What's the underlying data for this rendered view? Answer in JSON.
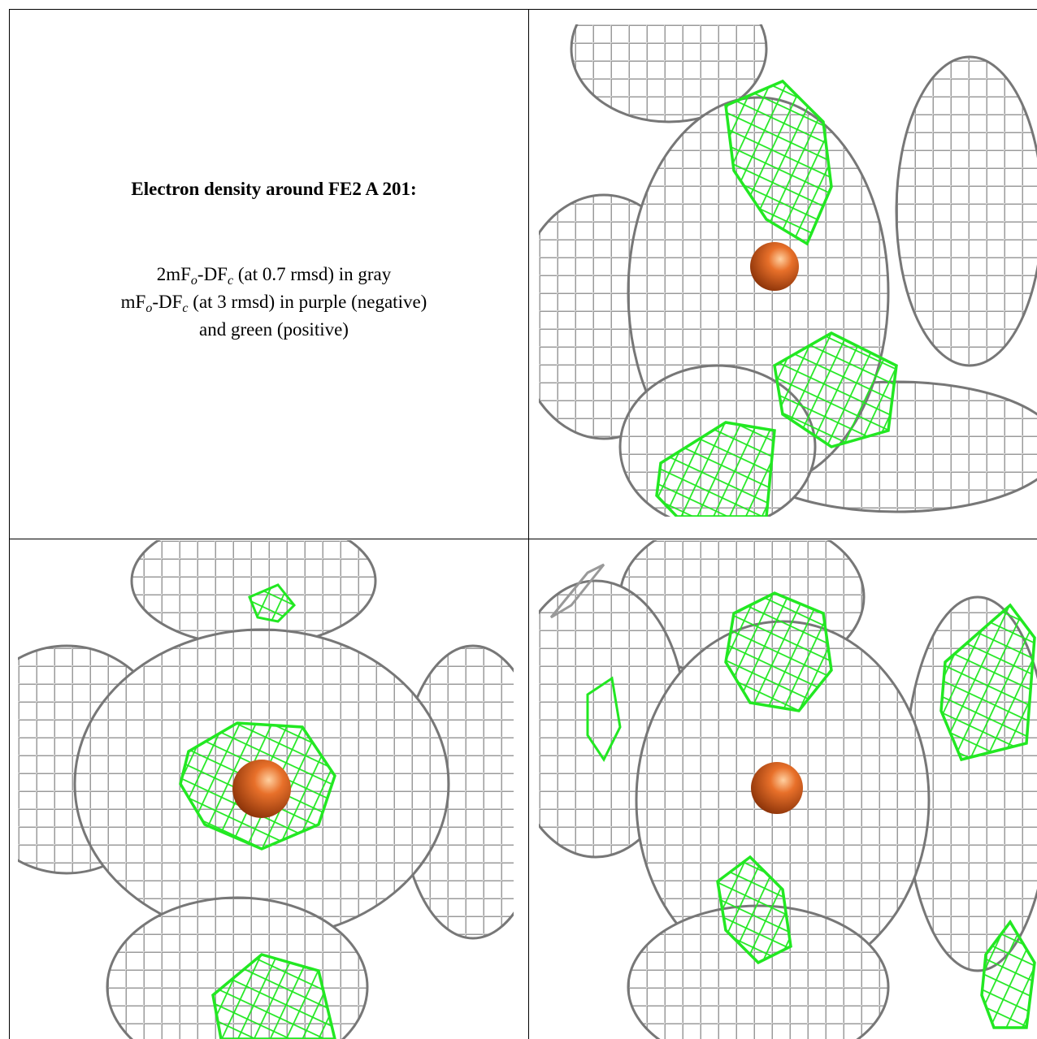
{
  "title": "Electron density around FE2 A 201:",
  "legend": [
    [
      "2mF",
      "o",
      "-DF",
      "c",
      " (at 0.7 rmsd) in gray"
    ],
    [
      "mF",
      "o",
      "-DF",
      "c",
      " (at 3 rmsd) in purple (negative)"
    ],
    [
      "and green (positive)"
    ]
  ]
}
